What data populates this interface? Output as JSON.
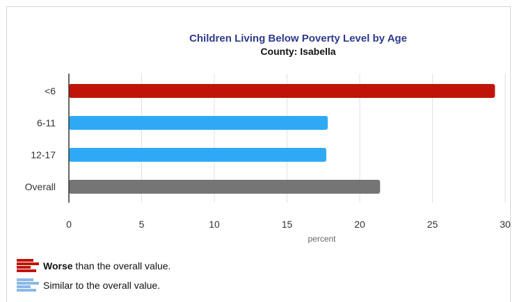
{
  "chart_data": {
    "type": "bar",
    "orientation": "horizontal",
    "title": "Children Living Below Poverty Level by Age",
    "subtitle": "County: Isabella",
    "categories": [
      "<6",
      "6-11",
      "12-17",
      "Overall"
    ],
    "values": [
      29.3,
      17.8,
      17.7,
      21.4
    ],
    "bar_colors": [
      "#c01408",
      "#2eaaf5",
      "#2eaaf5",
      "#757575"
    ],
    "xlabel": "percent",
    "ylabel": "",
    "xlim": [
      0,
      30
    ],
    "xticks": [
      "0",
      "5",
      "10",
      "15",
      "20",
      "25",
      "30"
    ],
    "grid": true
  },
  "legend": {
    "worse_bold": "Worse",
    "worse_rest": " than the overall value.",
    "worse_color": "#c01408",
    "similar_text": "Similar to the overall value.",
    "similar_color": "#8ab8e6"
  }
}
